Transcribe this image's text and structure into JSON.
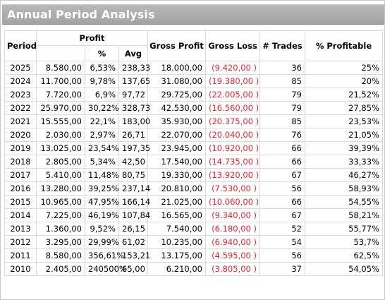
{
  "window": {
    "title": "Annual Period Analysis"
  },
  "table": {
    "headers": {
      "period": "Period",
      "profit": "Profit",
      "profit_pct": "%",
      "profit_avg": "Avg",
      "gross_profit": "Gross Profit",
      "gross_loss": "Gross Loss",
      "trades": "# Trades",
      "pct_profitable": "% Profitable"
    },
    "rows": [
      {
        "period": "2025",
        "profit": "8.580,00",
        "pct": "6,53%",
        "avg": "238,33",
        "gross_profit": "18.000,00",
        "gross_loss": "(9.420,00 )",
        "trades": "36",
        "pct_profitable": "25%"
      },
      {
        "period": "2024",
        "profit": "11.700,00",
        "pct": "9,78%",
        "avg": "137,65",
        "gross_profit": "31.080,00",
        "gross_loss": "(19.380,00 )",
        "trades": "85",
        "pct_profitable": "20%"
      },
      {
        "period": "2023",
        "profit": "7.720,00",
        "pct": "6,9%",
        "avg": "97,72",
        "gross_profit": "29.725,00",
        "gross_loss": "(22.005,00 )",
        "trades": "79",
        "pct_profitable": "21,52%"
      },
      {
        "period": "2022",
        "profit": "25.970,00",
        "pct": "30,22%",
        "avg": "328,73",
        "gross_profit": "42.530,00",
        "gross_loss": "(16.560,00 )",
        "trades": "79",
        "pct_profitable": "27,85%"
      },
      {
        "period": "2021",
        "profit": "15.555,00",
        "pct": "22,1%",
        "avg": "183,00",
        "gross_profit": "35.930,00",
        "gross_loss": "(20.375,00 )",
        "trades": "85",
        "pct_profitable": "23,53%"
      },
      {
        "period": "2020",
        "profit": "2.030,00",
        "pct": "2,97%",
        "avg": "26,71",
        "gross_profit": "22.070,00",
        "gross_loss": "(20.040,00 )",
        "trades": "76",
        "pct_profitable": "21,05%"
      },
      {
        "period": "2019",
        "profit": "13.025,00",
        "pct": "23,54%",
        "avg": "197,35",
        "gross_profit": "23.945,00",
        "gross_loss": "(10.920,00 )",
        "trades": "66",
        "pct_profitable": "39,39%"
      },
      {
        "period": "2018",
        "profit": "2.805,00",
        "pct": "5,34%",
        "avg": "42,50",
        "gross_profit": "17.540,00",
        "gross_loss": "(14.735,00 )",
        "trades": "66",
        "pct_profitable": "33,33%"
      },
      {
        "period": "2017",
        "profit": "5.410,00",
        "pct": "11,48%",
        "avg": "80,75",
        "gross_profit": "19.330,00",
        "gross_loss": "(13.920,00 )",
        "trades": "67",
        "pct_profitable": "46,27%"
      },
      {
        "period": "2016",
        "profit": "13.280,00",
        "pct": "39,25%",
        "avg": "237,14",
        "gross_profit": "20.810,00",
        "gross_loss": "(7.530,00 )",
        "trades": "56",
        "pct_profitable": "58,93%"
      },
      {
        "period": "2015",
        "profit": "10.965,00",
        "pct": "47,95%",
        "avg": "166,14",
        "gross_profit": "21.025,00",
        "gross_loss": "(10.060,00 )",
        "trades": "66",
        "pct_profitable": "54,55%"
      },
      {
        "period": "2014",
        "profit": "7.225,00",
        "pct": "46,19%",
        "avg": "107,84",
        "gross_profit": "16.565,00",
        "gross_loss": "(9.340,00 )",
        "trades": "67",
        "pct_profitable": "58,21%"
      },
      {
        "period": "2013",
        "profit": "1.360,00",
        "pct": "9,52%",
        "avg": "26,15",
        "gross_profit": "7.540,00",
        "gross_loss": "(6.180,00 )",
        "trades": "52",
        "pct_profitable": "55,77%"
      },
      {
        "period": "2012",
        "profit": "3.295,00",
        "pct": "29,99%",
        "avg": "61,02",
        "gross_profit": "10.235,00",
        "gross_loss": "(6.940,00 )",
        "trades": "54",
        "pct_profitable": "53,7%"
      },
      {
        "period": "2011",
        "profit": "8.580,00",
        "pct": "356,61%",
        "avg": "153,21",
        "gross_profit": "13.175,00",
        "gross_loss": "(4.595,00 )",
        "trades": "56",
        "pct_profitable": "62,5%"
      },
      {
        "period": "2010",
        "profit": "2.405,00",
        "pct": "240500%",
        "avg": "65,00",
        "gross_profit": "6.210,00",
        "gross_loss": "(3.805,00 )",
        "trades": "37",
        "pct_profitable": "54,05%"
      }
    ]
  },
  "colors": {
    "title_bar": "#a9a9a9",
    "title_text": "#ffffff",
    "negative": "#e8222b",
    "grid": "#d9d9d9"
  }
}
